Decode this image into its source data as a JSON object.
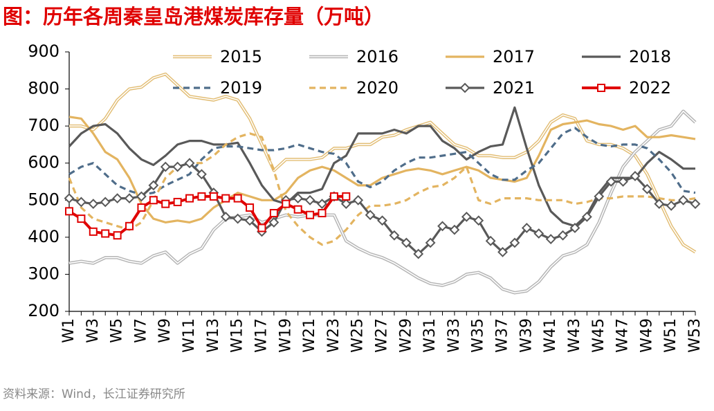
{
  "chart_data": {
    "type": "line",
    "title": "图：历年各周秦皇岛港煤炭库存量（万吨）",
    "source": "资料来源：Wind，长江证券研究所",
    "categories": [
      "W1",
      null,
      "W3",
      null,
      "W5",
      null,
      "W7",
      null,
      "W9",
      null,
      "W11",
      null,
      "W13",
      null,
      "W15",
      null,
      "W17",
      null,
      "W19",
      null,
      "W21",
      null,
      "W23",
      null,
      "W25",
      null,
      "W27",
      null,
      "W29",
      null,
      "W31",
      null,
      "W33",
      null,
      "W35",
      null,
      "W37",
      null,
      "W39",
      null,
      "W41",
      null,
      "W43",
      null,
      "W45",
      null,
      "W47",
      null,
      "W49",
      null,
      "W51",
      null,
      "W53"
    ],
    "ylim": [
      200,
      900
    ],
    "yticks": [
      200,
      300,
      400,
      500,
      600,
      700,
      800,
      900
    ],
    "series": [
      {
        "name": "2015",
        "color": "#e2bd74",
        "style": "double",
        "values": [
          700,
          700,
          690,
          720,
          770,
          800,
          805,
          830,
          840,
          810,
          780,
          775,
          770,
          780,
          770,
          720,
          650,
          580,
          610,
          610,
          610,
          615,
          640,
          640,
          650,
          650,
          670,
          675,
          690,
          700,
          710,
          680,
          650,
          640,
          620,
          620,
          615,
          615,
          630,
          660,
          710,
          730,
          720,
          660,
          650,
          650,
          640,
          620,
          570,
          500,
          430,
          380,
          360
        ]
      },
      {
        "name": "2016",
        "color": "#b4b4b4",
        "style": "double",
        "values": [
          330,
          335,
          330,
          345,
          345,
          335,
          330,
          350,
          360,
          330,
          355,
          370,
          420,
          450,
          455,
          460,
          440,
          450,
          460,
          455,
          460,
          460,
          460,
          390,
          370,
          355,
          345,
          330,
          310,
          290,
          275,
          270,
          280,
          300,
          305,
          290,
          260,
          250,
          255,
          280,
          320,
          350,
          360,
          380,
          440,
          520,
          590,
          630,
          660,
          690,
          700,
          740,
          710
        ]
      },
      {
        "name": "2017",
        "color": "#e3b460",
        "style": "solid",
        "values": [
          725,
          720,
          680,
          630,
          610,
          560,
          490,
          450,
          440,
          445,
          440,
          450,
          480,
          500,
          520,
          510,
          500,
          500,
          520,
          560,
          580,
          590,
          580,
          560,
          540,
          540,
          560,
          570,
          580,
          585,
          580,
          570,
          580,
          590,
          580,
          560,
          555,
          550,
          560,
          620,
          690,
          705,
          710,
          715,
          705,
          700,
          690,
          700,
          670,
          670,
          675,
          670,
          665
        ]
      },
      {
        "name": "2018",
        "color": "#595959",
        "style": "solid",
        "values": [
          645,
          680,
          700,
          705,
          680,
          640,
          610,
          595,
          620,
          650,
          660,
          660,
          650,
          650,
          655,
          600,
          540,
          500,
          490,
          520,
          520,
          530,
          600,
          620,
          680,
          680,
          680,
          690,
          680,
          700,
          700,
          660,
          640,
          610,
          630,
          645,
          650,
          750,
          640,
          540,
          470,
          440,
          430,
          460,
          520,
          560,
          560,
          560,
          600,
          630,
          610,
          585,
          585
        ]
      },
      {
        "name": "2019",
        "color": "#4f6d8a",
        "style": "dashed",
        "values": [
          570,
          590,
          600,
          570,
          540,
          525,
          515,
          520,
          540,
          555,
          570,
          610,
          640,
          645,
          645,
          640,
          635,
          635,
          640,
          650,
          640,
          630,
          625,
          600,
          550,
          535,
          550,
          580,
          600,
          615,
          615,
          620,
          625,
          630,
          600,
          570,
          555,
          555,
          580,
          600,
          640,
          680,
          695,
          670,
          650,
          645,
          650,
          650,
          640,
          610,
          575,
          525,
          520
        ]
      },
      {
        "name": "2020",
        "color": "#e3b460",
        "style": "dashed",
        "values": [
          560,
          480,
          450,
          440,
          430,
          420,
          440,
          500,
          560,
          590,
          600,
          600,
          620,
          650,
          670,
          680,
          670,
          580,
          470,
          430,
          400,
          380,
          390,
          420,
          460,
          485,
          485,
          490,
          500,
          520,
          535,
          540,
          560,
          590,
          500,
          490,
          505,
          505,
          505,
          500,
          500,
          500,
          490,
          495,
          505,
          505,
          510,
          510,
          510,
          505,
          500,
          500,
          505
        ]
      },
      {
        "name": "2021",
        "color": "#595959",
        "style": "solid",
        "marker": "diamond",
        "values": [
          505,
          495,
          490,
          495,
          505,
          505,
          510,
          540,
          590,
          590,
          600,
          570,
          520,
          455,
          450,
          445,
          415,
          440,
          500,
          505,
          500,
          490,
          510,
          490,
          500,
          460,
          445,
          405,
          385,
          355,
          385,
          430,
          420,
          455,
          445,
          390,
          360,
          385,
          425,
          410,
          395,
          405,
          425,
          455,
          510,
          550,
          550,
          565,
          530,
          490,
          485,
          500,
          490
        ]
      },
      {
        "name": "2022",
        "color": "#e00000",
        "style": "solid",
        "marker": "square",
        "values": [
          470,
          450,
          415,
          410,
          405,
          430,
          480,
          500,
          490,
          495,
          505,
          510,
          510,
          505,
          505,
          480,
          425,
          465,
          490,
          475,
          460,
          465,
          510,
          510,
          null,
          null,
          null,
          null,
          null,
          null,
          null,
          null,
          null,
          null,
          null,
          null,
          null,
          null,
          null,
          null,
          null,
          null,
          null,
          null,
          null,
          null,
          null,
          null,
          null,
          null,
          null,
          null,
          null
        ]
      }
    ]
  }
}
